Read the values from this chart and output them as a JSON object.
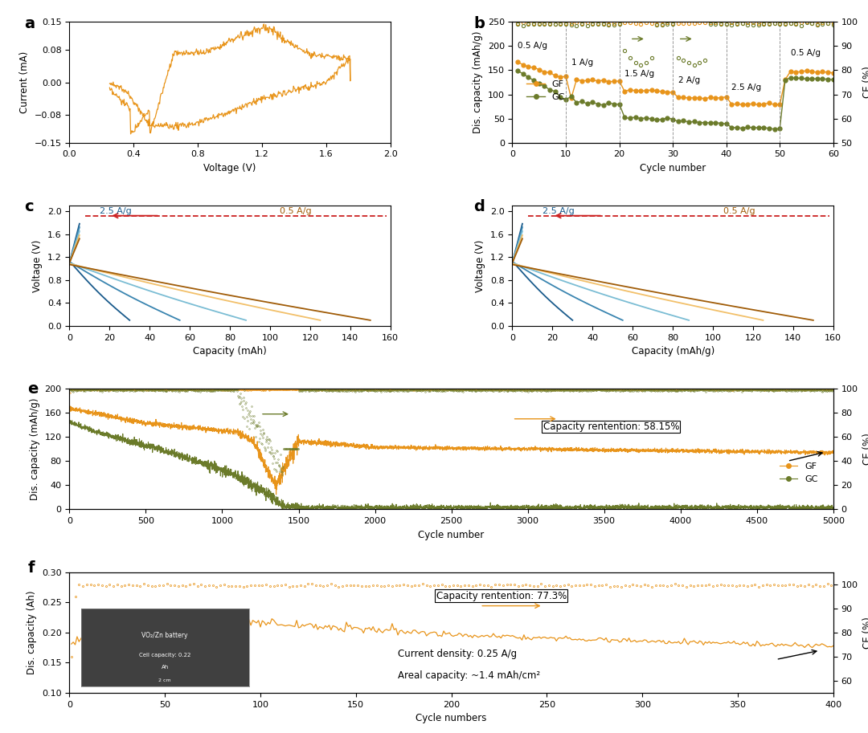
{
  "colors": {
    "orange": "#E8941A",
    "dark_olive": "#6B7B2A",
    "blue_dark": "#1A5B8C",
    "blue_mid": "#3A85B0",
    "blue_light": "#7BBDD4",
    "orange_light": "#F2C06A",
    "orange_dark": "#A05C08",
    "red_dashed": "#CC2222"
  },
  "panel_a": {
    "xlabel": "Voltage (V)",
    "ylabel": "Current (mA)",
    "xlim": [
      0.0,
      2.0
    ],
    "ylim": [
      -0.15,
      0.15
    ],
    "xticks": [
      0.0,
      0.4,
      0.8,
      1.2,
      1.6,
      2.0
    ],
    "yticks": [
      -0.15,
      -0.08,
      0.0,
      0.08,
      0.15
    ]
  },
  "panel_b": {
    "xlabel": "Cycle number",
    "ylabel": "Dis. capacity (mAh/g)",
    "ylabel2": "CE (%)",
    "xlim": [
      0,
      60
    ],
    "ylim": [
      0,
      250
    ],
    "ylim2": [
      50,
      100
    ],
    "xticks": [
      0,
      10,
      20,
      30,
      40,
      50,
      60
    ],
    "yticks": [
      0,
      50,
      100,
      150,
      200,
      250
    ],
    "yticks2": [
      50,
      60,
      70,
      80,
      90,
      100
    ]
  },
  "panel_c": {
    "xlabel": "Capacity (mAh)",
    "ylabel": "Voltage (V)",
    "xlim": [
      0,
      160
    ],
    "ylim": [
      0.0,
      2.1
    ],
    "xticks": [
      0,
      20,
      40,
      60,
      80,
      100,
      120,
      140,
      160
    ],
    "yticks": [
      0.0,
      0.4,
      0.8,
      1.2,
      1.6,
      2.0
    ]
  },
  "panel_d": {
    "xlabel": "Capacity (mAh/g)",
    "ylabel": "Voltage (V)",
    "xlim": [
      0,
      160
    ],
    "ylim": [
      0.0,
      2.1
    ],
    "xticks": [
      0,
      20,
      40,
      60,
      80,
      100,
      120,
      140,
      160
    ],
    "yticks": [
      0.0,
      0.4,
      0.8,
      1.2,
      1.6,
      2.0
    ]
  },
  "panel_e": {
    "xlabel": "Cycle number",
    "ylabel": "Dis. capacity (mAh/g)",
    "ylabel2": "CE (%)",
    "xlim": [
      0,
      5000
    ],
    "ylim": [
      0,
      200
    ],
    "ylim2": [
      0,
      100
    ],
    "xticks": [
      0,
      500,
      1000,
      1500,
      2000,
      2500,
      3000,
      3500,
      4000,
      4500,
      5000
    ],
    "yticks": [
      0,
      40,
      80,
      120,
      160,
      200
    ],
    "yticks2": [
      0,
      20,
      40,
      60,
      80,
      100
    ],
    "annotation": "Capacity rentention: 58.15%"
  },
  "panel_f": {
    "xlabel": "Cycle numbers",
    "ylabel": "Dis. capacity (Ah)",
    "ylabel2": "CE (%)",
    "xlim": [
      0,
      400
    ],
    "ylim": [
      0.1,
      0.3
    ],
    "ylim2": [
      55,
      105
    ],
    "xticks": [
      0,
      50,
      100,
      150,
      200,
      250,
      300,
      350,
      400
    ],
    "yticks": [
      0.1,
      0.15,
      0.2,
      0.25,
      0.3
    ],
    "yticks2": [
      60,
      70,
      80,
      90,
      100
    ],
    "annotation1": "Capacity rentention: 77.3%",
    "annotation2": "Current density: 0.25 A/g",
    "annotation3": "Areal capacity: ~1.4 mAh/cm²"
  }
}
